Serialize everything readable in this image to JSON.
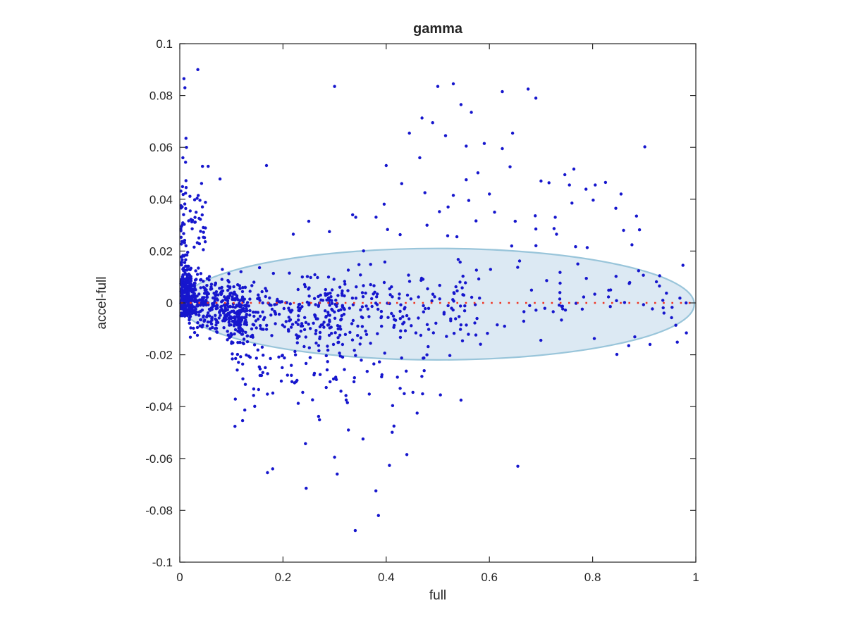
{
  "page": {
    "background": "#ffffff"
  },
  "chart_data": {
    "type": "scatter",
    "title": "gamma",
    "xlabel": "full",
    "ylabel": "accel-full",
    "xlim": [
      0,
      1
    ],
    "ylim": [
      -0.1,
      0.1
    ],
    "grid": false,
    "legend": null,
    "xticks": {
      "values": [
        0,
        0.2,
        0.4,
        0.6,
        0.8,
        1
      ],
      "labels": [
        "0",
        "0.2",
        "0.4",
        "0.6",
        "0.8",
        "1"
      ]
    },
    "yticks": {
      "values": [
        -0.1,
        -0.08,
        -0.06,
        -0.04,
        -0.02,
        0,
        0.02,
        0.04,
        0.06,
        0.08,
        0.1
      ],
      "labels": [
        "-0.1",
        "-0.08",
        "-0.06",
        "-0.04",
        "-0.02",
        "0",
        "0.02",
        "0.04",
        "0.06",
        "0.08",
        "0.1"
      ]
    },
    "frame": {
      "color": "#262626",
      "tick_length": 8,
      "line_width": 1.2
    },
    "marker": {
      "shape": "dot",
      "color": "#1616cd",
      "radius": 2.2
    },
    "zero_line": {
      "y": 0,
      "color": "#ee3322",
      "style": "dotted",
      "dash": "2.6 9.6",
      "width": 2.6
    },
    "ellipse": {
      "cx": 0.5,
      "cy": -0.0005,
      "rx": 0.497,
      "ry": 0.0215,
      "fill": "#dce9f3",
      "stroke": "#99c5da",
      "stroke_width": 2.2
    },
    "outlier_points": [
      [
        0.035,
        0.09
      ],
      [
        0.008,
        0.0865
      ],
      [
        0.01,
        0.083
      ],
      [
        0.012,
        0.0635
      ],
      [
        0.013,
        0.06
      ],
      [
        0.006,
        0.056
      ],
      [
        0.044,
        0.0527
      ],
      [
        0.055,
        0.0527
      ],
      [
        0.168,
        0.053
      ],
      [
        0.078,
        0.0478
      ],
      [
        0.3,
        0.0835
      ],
      [
        0.5,
        0.0835
      ],
      [
        0.53,
        0.0845
      ],
      [
        0.625,
        0.0815
      ],
      [
        0.675,
        0.0825
      ],
      [
        0.69,
        0.079
      ],
      [
        0.545,
        0.0765
      ],
      [
        0.565,
        0.0735
      ],
      [
        0.49,
        0.0695
      ],
      [
        0.515,
        0.0645
      ],
      [
        0.445,
        0.0655
      ],
      [
        0.555,
        0.0605
      ],
      [
        0.59,
        0.0615
      ],
      [
        0.625,
        0.0595
      ],
      [
        0.645,
        0.0655
      ],
      [
        0.64,
        0.0525
      ],
      [
        0.555,
        0.0475
      ],
      [
        0.6,
        0.042
      ],
      [
        0.56,
        0.0395
      ],
      [
        0.53,
        0.0415
      ],
      [
        0.475,
        0.0425
      ],
      [
        0.465,
        0.056
      ],
      [
        0.43,
        0.046
      ],
      [
        0.4,
        0.053
      ],
      [
        0.7,
        0.047
      ],
      [
        0.755,
        0.0455
      ],
      [
        0.805,
        0.0455
      ],
      [
        0.825,
        0.0465
      ],
      [
        0.855,
        0.042
      ],
      [
        0.845,
        0.0365
      ],
      [
        0.76,
        0.0385
      ],
      [
        0.885,
        0.0335
      ],
      [
        0.86,
        0.028
      ],
      [
        0.52,
        0.037
      ],
      [
        0.61,
        0.035
      ],
      [
        0.65,
        0.0315
      ],
      [
        0.69,
        0.0285
      ],
      [
        0.73,
        0.0265
      ],
      [
        0.335,
        0.034
      ],
      [
        0.25,
        0.0315
      ],
      [
        0.29,
        0.0275
      ],
      [
        0.22,
        0.0265
      ],
      [
        0.975,
        0.0145
      ],
      [
        0.936,
        0.001
      ],
      [
        0.954,
        -0.0017
      ],
      [
        0.34,
        -0.0878
      ],
      [
        0.385,
        -0.082
      ],
      [
        0.38,
        -0.0725
      ],
      [
        0.245,
        -0.0715
      ],
      [
        0.305,
        -0.066
      ],
      [
        0.17,
        -0.0655
      ],
      [
        0.18,
        -0.064
      ],
      [
        0.44,
        -0.0585
      ],
      [
        0.655,
        -0.063
      ],
      [
        0.3,
        -0.0595
      ],
      [
        0.355,
        -0.0525
      ],
      [
        0.415,
        -0.0475
      ],
      [
        0.46,
        -0.0425
      ],
      [
        0.435,
        -0.035
      ],
      [
        0.505,
        -0.0355
      ],
      [
        0.545,
        -0.0375
      ],
      [
        0.87,
        -0.0165
      ]
    ],
    "generated_clusters": {
      "seed": 42,
      "clusters": [
        {
          "name": "axis-wall",
          "n": 230,
          "x": [
            0.002,
            0.022
          ],
          "xpow": 1.4,
          "m0": 0.005,
          "m1": 0.002,
          "sigma": 0.007,
          "clip": [
            -0.007,
            0.0225
          ],
          "dist": "gauss"
        },
        {
          "name": "upward-plume",
          "n": 60,
          "x": [
            0.002,
            0.05
          ],
          "xpow": 1.8,
          "m0": 0.021,
          "m1": 0.02,
          "sigma": 0.012,
          "clip": [
            0.02,
            0.062
          ],
          "dist": "halfup"
        },
        {
          "name": "dense-core",
          "n": 380,
          "x": [
            0.014,
            0.13
          ],
          "xpow": 1.2,
          "m0": 0.001,
          "m1": -0.0045,
          "sigma": 0.0055,
          "clip": [
            -0.0205,
            0.0185
          ],
          "dist": "gauss"
        },
        {
          "name": "mid-fan",
          "n": 270,
          "x": [
            0.09,
            0.32
          ],
          "xpow": 1.25,
          "m0": -0.0045,
          "m1": -0.005,
          "sigma": 0.0075,
          "clip": [
            -0.0285,
            0.014
          ],
          "dist": "gauss"
        },
        {
          "name": "central-band",
          "n": 170,
          "x": [
            0.28,
            0.56
          ],
          "xpow": 1.15,
          "m0": -0.003,
          "m1": -0.002,
          "sigma": 0.008,
          "clip": [
            -0.027,
            0.017
          ],
          "dist": "gauss"
        },
        {
          "name": "sparse-right",
          "n": 80,
          "x": [
            0.5,
            0.995
          ],
          "xpow": 1,
          "m0": 0,
          "m1": 0.001,
          "sigma": 0.0105,
          "clip": [
            -0.0245,
            0.0225
          ],
          "dist": "gauss"
        },
        {
          "name": "lower-fan",
          "n": 90,
          "x": [
            0.1,
            0.48
          ],
          "xpow": 1.15,
          "m0": -0.02,
          "m1": -0.02,
          "sigma": 0.011,
          "clip": [
            -0.092,
            -0.02
          ],
          "dist": "expdown"
        },
        {
          "name": "upper-scatter",
          "n": 25,
          "x": [
            0.3,
            0.95
          ],
          "xpow": 1,
          "m0": 0.02,
          "m1": 0.02,
          "sigma": 0.022,
          "clip": [
            0.02,
            0.088
          ],
          "dist": "halfup"
        }
      ]
    }
  }
}
